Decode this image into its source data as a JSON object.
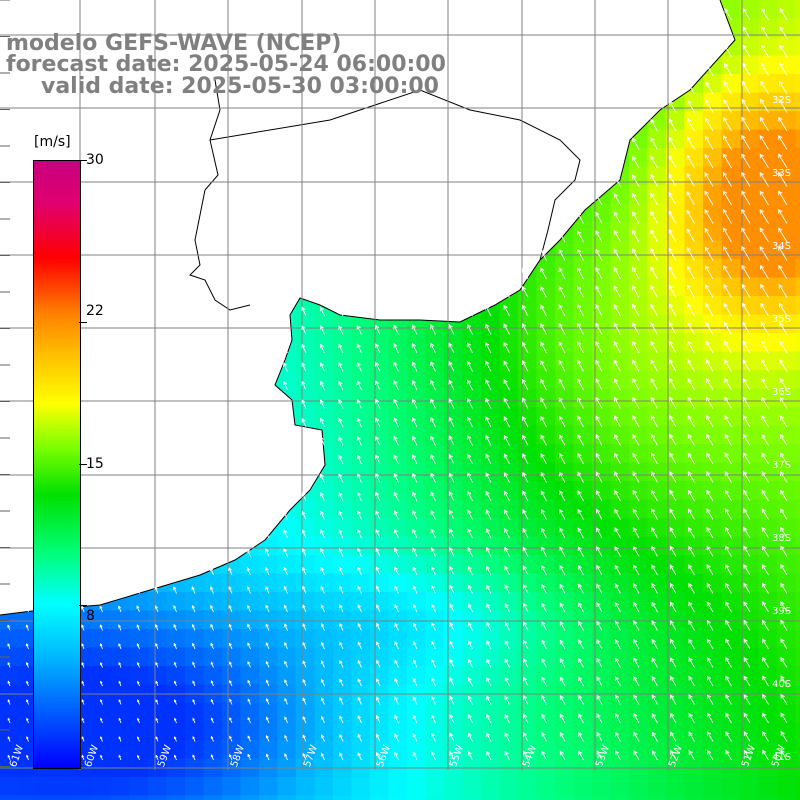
{
  "titles": {
    "line1": "modelo GEFS-WAVE (NCEP)",
    "line2": "forecast date: 2025-05-24 06:00:00",
    "line3": "valid date: 2025-05-30 03:00:00"
  },
  "colorbar": {
    "unit": "[m/s]",
    "ticks": [
      "30",
      "22",
      "15",
      "8"
    ],
    "tick_values": [
      30,
      22,
      15,
      8
    ],
    "min": 0,
    "max": 30,
    "stops": [
      "#0000ff",
      "#00b4ff",
      "#00ffff",
      "#00ff7f",
      "#00e000",
      "#7fff00",
      "#ffff00",
      "#ffc000",
      "#ff7f00",
      "#ff0000",
      "#e0006f",
      "#c8007f"
    ]
  },
  "map": {
    "lon_labels": [
      "61W",
      "60W",
      "59W",
      "58W",
      "57W",
      "56W",
      "55W",
      "54W",
      "53W",
      "52W",
      "51W",
      "50W"
    ],
    "lat_labels": [
      "32S",
      "33S",
      "34S",
      "35S",
      "36S",
      "37S",
      "38S",
      "39S",
      "40S",
      "41S"
    ],
    "land_color": "#ffffff",
    "coast_color": "#000000",
    "grid_color": "#808080",
    "arrow_color": "#ffffff"
  }
}
